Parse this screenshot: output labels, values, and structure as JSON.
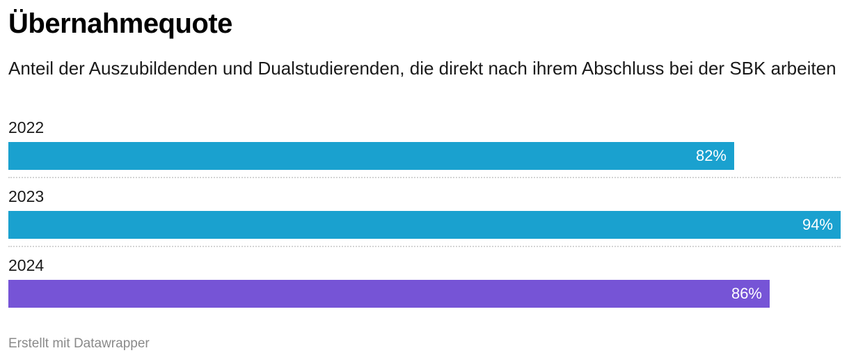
{
  "chart_data": {
    "type": "bar",
    "orientation": "horizontal",
    "title": "Übernahmequote",
    "subtitle": "Anteil der Auszubildenden und Dualstudierenden, die direkt nach ihrem Abschluss bei der SBK arbeiten",
    "categories": [
      "2022",
      "2023",
      "2024"
    ],
    "values": [
      82,
      94,
      86
    ],
    "value_labels": [
      "82%",
      "94%",
      "86%"
    ],
    "bar_colors": [
      "#1aa1cf",
      "#1aa1cf",
      "#7654d6"
    ],
    "xlim": [
      0,
      94
    ],
    "grid": false,
    "legend": "none",
    "xlabel": "",
    "ylabel": ""
  },
  "footer": {
    "credit": "Erstellt mit Datawrapper"
  }
}
